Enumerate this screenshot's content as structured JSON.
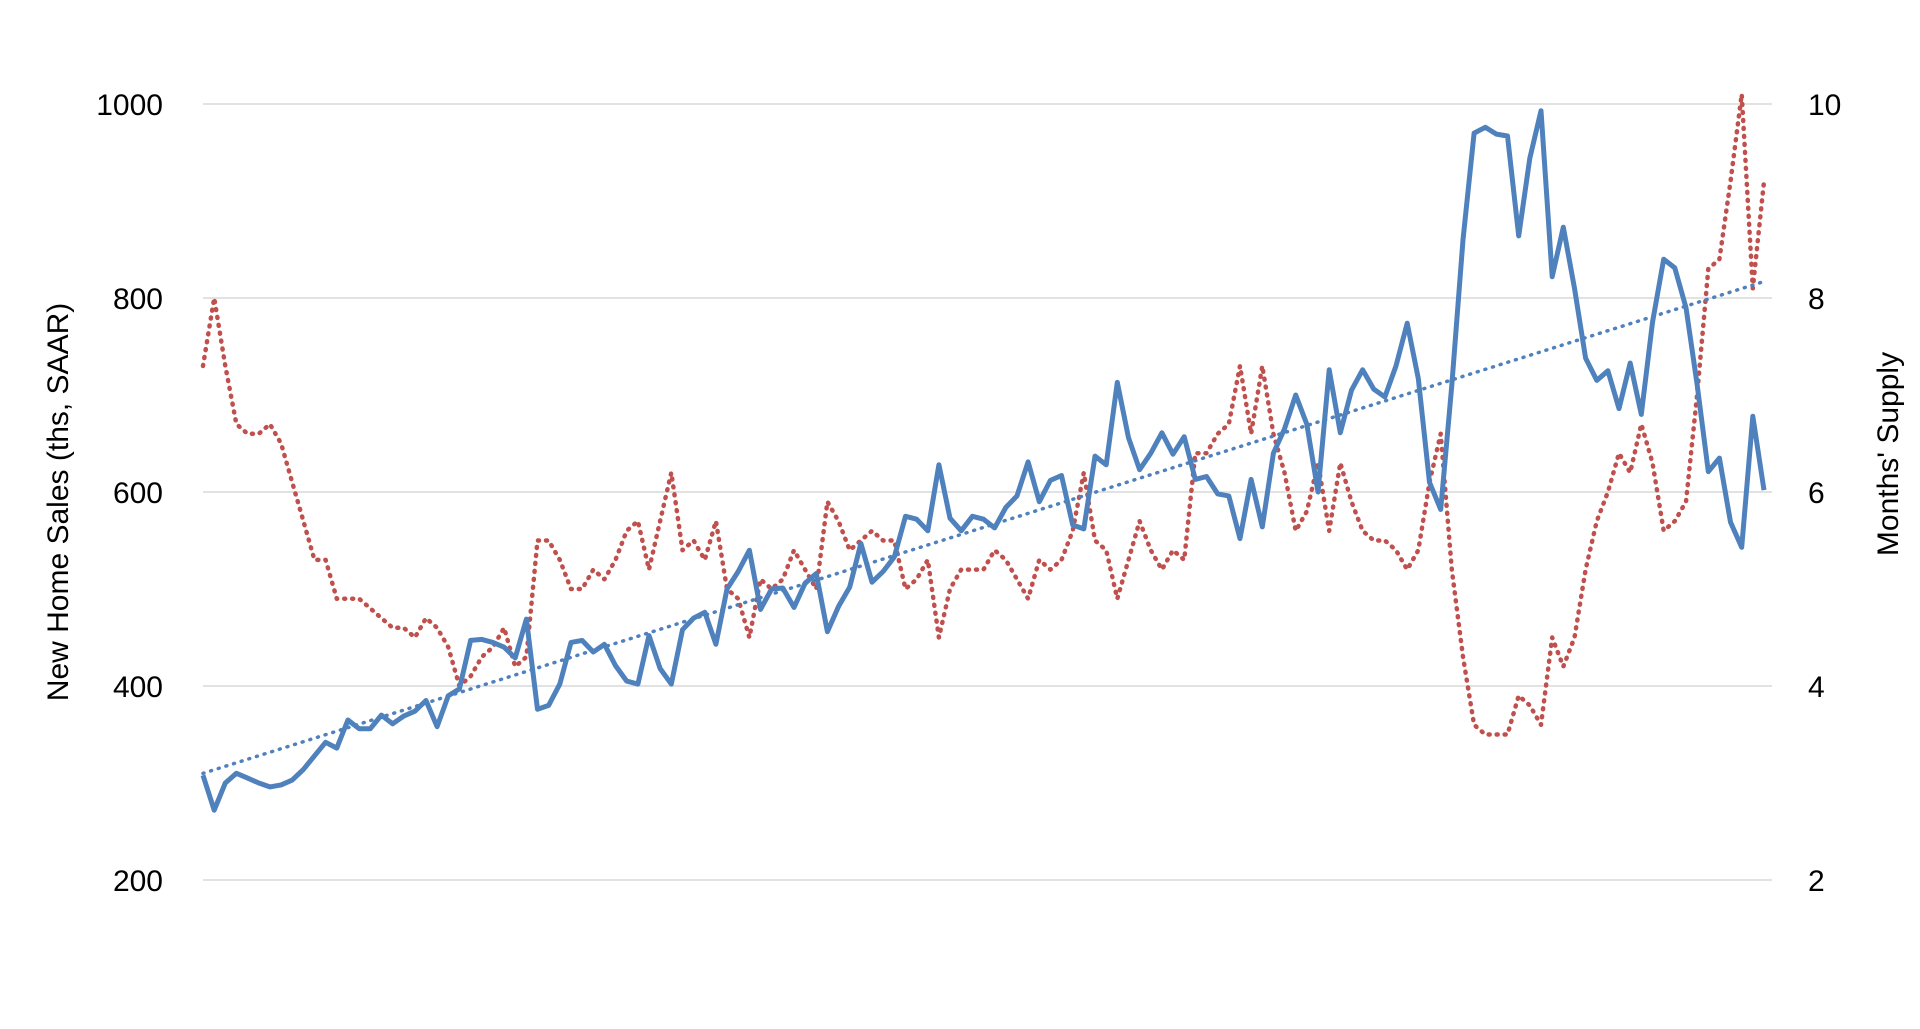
{
  "chart_data": {
    "type": "line",
    "title": "",
    "ylabel_left": "New Home Sales (ths, SAAR)",
    "ylabel_right": "Months' Supply",
    "ylim_left": [
      200,
      1000
    ],
    "ylim_right": [
      2,
      10
    ],
    "yticks_left": [
      "200",
      "400",
      "600",
      "800",
      "1000"
    ],
    "yticks_right": [
      "2",
      "4",
      "6",
      "8",
      "10"
    ],
    "grid": true,
    "legend": "none",
    "colors": {
      "sales": "#4f81bd",
      "supply": "#c0504d",
      "trend": "#4f81bd",
      "grid": "#d9d9d9"
    },
    "series": [
      {
        "axis": "left",
        "style": "solid",
        "values": [
          308,
          272,
          300,
          310,
          305,
          300,
          296,
          298,
          303,
          314,
          328,
          342,
          336,
          365,
          356,
          356,
          370,
          361,
          369,
          374,
          385,
          358,
          390,
          397,
          447,
          448,
          445,
          440,
          429,
          469,
          376,
          380,
          402,
          445,
          447,
          435,
          443,
          421,
          405,
          402,
          452,
          418,
          402,
          458,
          470,
          476,
          443,
          500,
          518,
          540,
          479,
          500,
          501,
          481,
          506,
          516,
          456,
          482,
          502,
          547,
          507,
          518,
          533,
          575,
          572,
          560,
          628,
          573,
          560,
          575,
          572,
          563,
          584,
          596,
          631,
          590,
          612,
          617,
          566,
          562,
          637,
          628,
          713,
          656,
          623,
          640,
          661,
          639,
          657,
          613,
          616,
          598,
          596,
          552,
          613,
          564,
          640,
          665,
          700,
          670,
          600,
          726,
          661,
          705,
          726,
          706,
          698,
          730,
          774,
          717,
          610,
          582,
          710,
          860,
          970,
          976,
          969,
          967,
          864,
          944,
          993,
          822,
          873,
          810,
          738,
          715,
          725,
          686,
          733,
          680,
          775,
          840,
          831,
          790,
          711,
          621,
          635,
          569,
          543,
          678,
          602
        ]
      },
      {
        "axis": "right",
        "style": "dotted",
        "values": [
          7.3,
          8.0,
          7.3,
          6.7,
          6.6,
          6.6,
          6.7,
          6.5,
          6.1,
          5.7,
          5.3,
          5.3,
          4.9,
          4.9,
          4.9,
          4.8,
          4.7,
          4.6,
          4.6,
          4.5,
          4.7,
          4.6,
          4.4,
          4.0,
          4.1,
          4.3,
          4.4,
          4.6,
          4.2,
          4.3,
          5.5,
          5.5,
          5.3,
          5.0,
          5.0,
          5.2,
          5.1,
          5.3,
          5.6,
          5.7,
          5.2,
          5.7,
          6.2,
          5.4,
          5.5,
          5.3,
          5.7,
          5.0,
          4.9,
          4.5,
          5.1,
          5.0,
          5.1,
          5.4,
          5.2,
          5.0,
          5.9,
          5.7,
          5.4,
          5.5,
          5.6,
          5.5,
          5.5,
          5.0,
          5.1,
          5.3,
          4.5,
          5.0,
          5.2,
          5.2,
          5.2,
          5.4,
          5.3,
          5.1,
          4.9,
          5.3,
          5.2,
          5.3,
          5.6,
          6.2,
          5.5,
          5.4,
          4.9,
          5.3,
          5.7,
          5.4,
          5.2,
          5.4,
          5.3,
          6.4,
          6.4,
          6.6,
          6.7,
          7.3,
          6.6,
          7.3,
          6.6,
          6.2,
          5.6,
          5.8,
          6.3,
          5.6,
          6.3,
          5.9,
          5.6,
          5.5,
          5.5,
          5.4,
          5.2,
          5.4,
          6.1,
          6.6,
          5.2,
          4.3,
          3.6,
          3.5,
          3.5,
          3.5,
          3.9,
          3.8,
          3.6,
          4.5,
          4.2,
          4.5,
          5.2,
          5.7,
          6.0,
          6.4,
          6.2,
          6.7,
          6.3,
          5.6,
          5.7,
          5.9,
          7.0,
          8.3,
          8.4,
          9.2,
          10.1,
          8.1,
          9.2
        ]
      },
      {
        "axis": "left",
        "style": "trend",
        "values": [
          310,
          817
        ]
      }
    ]
  }
}
